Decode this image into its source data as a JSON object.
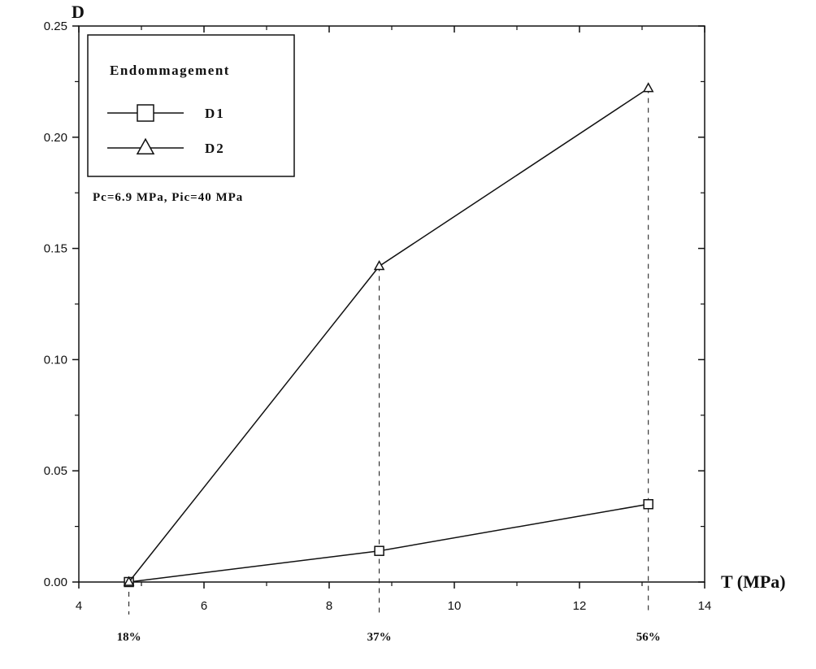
{
  "chart_data": {
    "type": "line",
    "title": "",
    "ylabel": "D",
    "xlabel": "T (MPa)",
    "xlim": [
      4,
      14
    ],
    "ylim": [
      0,
      0.25
    ],
    "x_ticks": [
      4,
      6,
      8,
      10,
      12,
      14
    ],
    "y_ticks": [
      0.0,
      0.05,
      0.1,
      0.15,
      0.2,
      0.25
    ],
    "x_tick_labels": [
      "4",
      "6",
      "8",
      "10",
      "12",
      "14"
    ],
    "y_tick_labels": [
      "0.00",
      "0.05",
      "0.10",
      "0.15",
      "0.20",
      "0.25"
    ],
    "grid": false,
    "legend": {
      "title": "Endommagement",
      "placement": "top-left",
      "note": "Pc=6.9 MPa, Pic=40 MPa"
    },
    "x": [
      4.8,
      8.8,
      13.1
    ],
    "series": [
      {
        "name": "D1",
        "marker": "square",
        "values": [
          0.0,
          0.014,
          0.035
        ]
      },
      {
        "name": "D2",
        "marker": "triangle",
        "values": [
          0.0,
          0.142,
          0.222
        ]
      }
    ],
    "percent_labels": [
      "18%",
      "37%",
      "56%"
    ],
    "colors": {
      "line": "#111111",
      "background": "#ffffff"
    }
  }
}
